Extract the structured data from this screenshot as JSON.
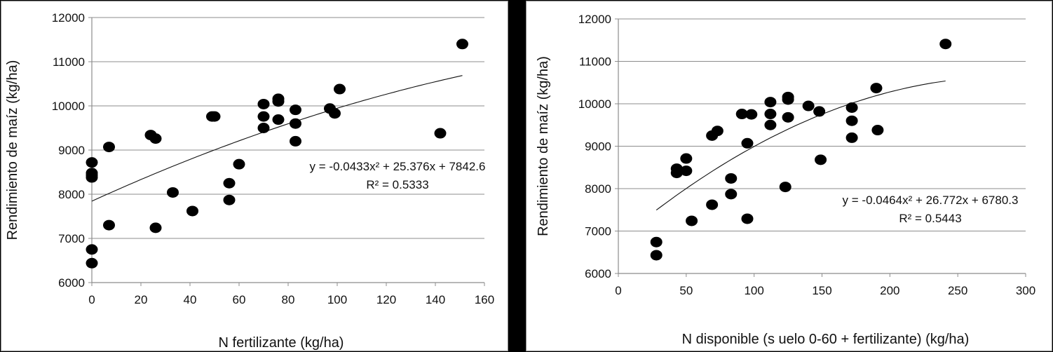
{
  "chart_data": [
    {
      "type": "scatter",
      "xlabel": "N fertilizante (kg/ha)",
      "ylabel": "Rendimiento de maíz (kg/ha)",
      "xlim": [
        0,
        160
      ],
      "ylim": [
        6000,
        12000
      ],
      "xticks": [
        0,
        20,
        40,
        60,
        80,
        100,
        120,
        140,
        160
      ],
      "yticks": [
        6000,
        7000,
        8000,
        9000,
        10000,
        11000,
        12000
      ],
      "grid": "horizontal",
      "x": [
        0,
        0,
        0,
        0,
        0,
        0,
        7,
        7,
        24,
        26,
        26,
        33,
        41,
        49,
        50,
        56,
        56,
        60,
        70,
        70,
        70,
        76,
        76,
        76,
        83,
        83,
        83,
        97,
        99,
        101,
        142,
        151
      ],
      "y": [
        8720,
        8480,
        8380,
        6750,
        6440,
        8430,
        9070,
        7300,
        9340,
        9260,
        7240,
        8040,
        7620,
        9760,
        9760,
        8250,
        7870,
        8680,
        10040,
        9760,
        9500,
        10160,
        10100,
        9690,
        9910,
        9600,
        9200,
        9940,
        9830,
        10380,
        9380,
        11400
      ],
      "trendline": {
        "type": "polynomial",
        "coefficients": [
          -0.0433,
          25.376,
          7842.6
        ],
        "x_range": [
          0,
          151
        ]
      },
      "equation": "y = -0.0433x² + 25.376x + 7842.6",
      "r_squared": "R² = 0.5333"
    },
    {
      "type": "scatter",
      "xlabel": "N disponible (s uelo 0-60 + fertilizante) (kg/ha)",
      "ylabel": "Rendimiento de maíz (kg/ha)",
      "xlim": [
        0,
        300
      ],
      "ylim": [
        6000,
        12000
      ],
      "xticks": [
        0,
        50,
        100,
        150,
        200,
        250,
        300
      ],
      "yticks": [
        6000,
        7000,
        8000,
        9000,
        10000,
        11000,
        12000
      ],
      "grid": "horizontal",
      "x": [
        28,
        28,
        43,
        43,
        50,
        50,
        54,
        69,
        69,
        73,
        83,
        83,
        91,
        95,
        95,
        98,
        112,
        112,
        112,
        123,
        125,
        125,
        125,
        140,
        148,
        149,
        172,
        172,
        172,
        190,
        191,
        241
      ],
      "y": [
        6740,
        6430,
        8470,
        8370,
        8710,
        8420,
        7240,
        9250,
        7620,
        9360,
        8240,
        7870,
        9760,
        9070,
        7290,
        9750,
        10040,
        9760,
        9500,
        8040,
        10160,
        10100,
        9680,
        9950,
        9820,
        8680,
        9910,
        9600,
        9200,
        10370,
        9380,
        11410
      ],
      "trendline": {
        "type": "polynomial",
        "coefficients": [
          -0.0464,
          26.772,
          6780.3
        ],
        "x_range": [
          28,
          241
        ]
      },
      "equation": "y = -0.0464x² + 26.772x + 6780.3",
      "r_squared": "R² = 0.5443"
    }
  ]
}
